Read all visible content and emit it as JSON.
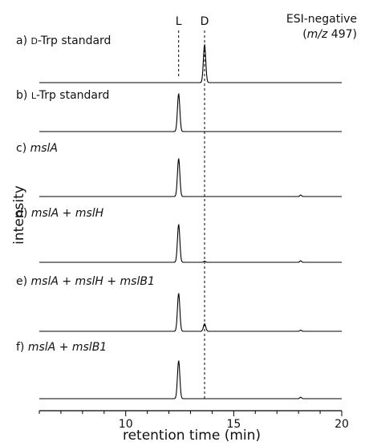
{
  "chart_data": {
    "type": "line",
    "xlabel": "retention time (min)",
    "ylabel": "intensity",
    "xlim": [
      6,
      20
    ],
    "x_ticks": [
      10,
      15,
      20
    ],
    "annotation_lines": [
      {
        "label": "L",
        "x": 12.45
      },
      {
        "label": "D",
        "x": 13.65
      }
    ],
    "detection_note": {
      "line1": "ESI-negative",
      "line2_prefix": "(",
      "line2_italic": "m/z",
      "line2_suffix": " 497)"
    },
    "panels": [
      {
        "label_plain": "a) ",
        "label_small_caps": "D",
        "label_rest": "-Trp standard",
        "label_italic": false,
        "peaks": [
          {
            "x": 13.65,
            "height": 1.0
          }
        ]
      },
      {
        "label_plain": "b) ",
        "label_small_caps": "L",
        "label_rest": "-Trp standard",
        "label_italic": false,
        "peaks": [
          {
            "x": 12.45,
            "height": 1.0
          }
        ]
      },
      {
        "label_plain": "c) ",
        "label_italic_text": "mslA",
        "label_italic": true,
        "peaks": [
          {
            "x": 12.45,
            "height": 1.0
          },
          {
            "x": 18.1,
            "height": 0.04
          }
        ]
      },
      {
        "label_plain": "d) ",
        "label_italic_text": "mslA + mslH",
        "label_italic": true,
        "peaks": [
          {
            "x": 12.45,
            "height": 1.0
          },
          {
            "x": 13.65,
            "height": 0.03
          },
          {
            "x": 18.1,
            "height": 0.04
          }
        ]
      },
      {
        "label_plain": "e) ",
        "label_italic_text": "mslA + mslH + mslB1",
        "label_italic": true,
        "peaks": [
          {
            "x": 12.45,
            "height": 1.0
          },
          {
            "x": 13.65,
            "height": 0.2
          },
          {
            "x": 18.1,
            "height": 0.03
          }
        ]
      },
      {
        "label_plain": "f) ",
        "label_italic_text": "mslA + mslB1",
        "label_italic": true,
        "peaks": [
          {
            "x": 12.45,
            "height": 1.0
          },
          {
            "x": 18.1,
            "height": 0.04
          }
        ]
      }
    ]
  }
}
